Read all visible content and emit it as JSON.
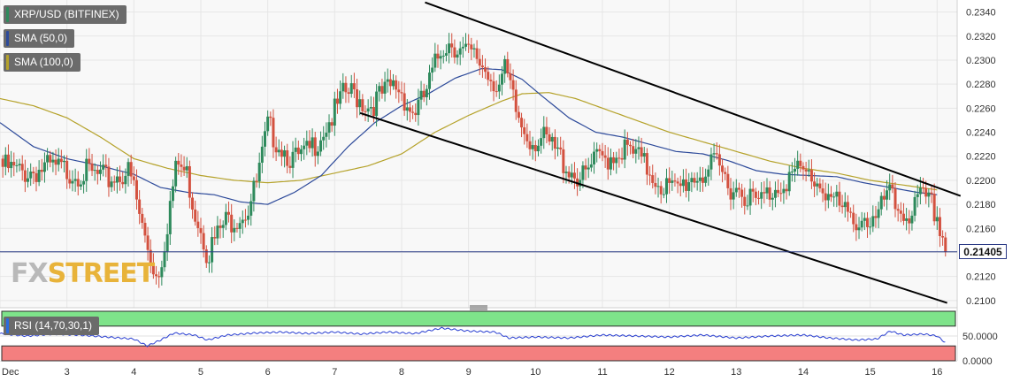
{
  "legend": {
    "pair": "XRP/USD (BITFINEX)",
    "sma50": "SMA (50,0)",
    "sma100": "SMA (100,0)",
    "rsi": "RSI (14,70,30,1)",
    "last_price": "0.21405",
    "watermark_a": "FX",
    "watermark_b": "STREET"
  },
  "colors": {
    "up": "#2e8a5c",
    "down": "#d3513f",
    "sma50": "#2d4a9a",
    "sma100": "#b5a22a",
    "rsi_line": "#2a3fd1",
    "overbought": "#7ee38a",
    "oversold": "#f47f7f",
    "price_line": "#2b3a86"
  },
  "chart_data": [
    {
      "type": "candlestick",
      "title": "XRP/USD (BITFINEX)",
      "ylim": [
        0.2094,
        0.235
      ],
      "y_ticks": [
        "0.2340",
        "0.2320",
        "0.2300",
        "0.2280",
        "0.2260",
        "0.2240",
        "0.2220",
        "0.2200",
        "0.2180",
        "0.2160",
        "0.2140",
        "0.2120",
        "0.2100"
      ],
      "x_ticks": [
        "Dec",
        "3",
        "4",
        "5",
        "6",
        "7",
        "8",
        "9",
        "10",
        "11",
        "12",
        "13",
        "14",
        "15",
        "16"
      ],
      "x_tick_days": [
        2,
        3,
        4,
        5,
        6,
        7,
        8,
        9,
        10,
        11,
        12,
        13,
        14,
        15,
        16
      ],
      "xlim_days": [
        2.0,
        16.3
      ],
      "close_anchors": [
        [
          2.0,
          0.2218
        ],
        [
          2.3,
          0.2212
        ],
        [
          2.7,
          0.2216
        ],
        [
          3.0,
          0.2214
        ],
        [
          3.3,
          0.2212
        ],
        [
          3.6,
          0.2206
        ],
        [
          3.9,
          0.2214
        ],
        [
          4.0,
          0.22
        ],
        [
          4.1,
          0.2172
        ],
        [
          4.25,
          0.2142
        ],
        [
          4.35,
          0.2125
        ],
        [
          4.45,
          0.2152
        ],
        [
          4.55,
          0.219
        ],
        [
          4.65,
          0.222
        ],
        [
          4.8,
          0.221
        ],
        [
          4.9,
          0.2182
        ],
        [
          5.0,
          0.2168
        ],
        [
          5.1,
          0.2145
        ],
        [
          5.2,
          0.2155
        ],
        [
          5.35,
          0.217
        ],
        [
          5.5,
          0.2175
        ],
        [
          5.7,
          0.2182
        ],
        [
          5.82,
          0.22
        ],
        [
          5.92,
          0.2226
        ],
        [
          6.0,
          0.225
        ],
        [
          6.2,
          0.2235
        ],
        [
          6.4,
          0.2222
        ],
        [
          6.6,
          0.2228
        ],
        [
          6.8,
          0.2246
        ],
        [
          7.0,
          0.2262
        ],
        [
          7.15,
          0.2278
        ],
        [
          7.3,
          0.2278
        ],
        [
          7.5,
          0.2268
        ],
        [
          7.7,
          0.2276
        ],
        [
          7.9,
          0.2285
        ],
        [
          8.0,
          0.228
        ],
        [
          8.15,
          0.2262
        ],
        [
          8.3,
          0.227
        ],
        [
          8.45,
          0.2292
        ],
        [
          8.6,
          0.2318
        ],
        [
          8.75,
          0.2322
        ],
        [
          8.9,
          0.2312
        ],
        [
          9.0,
          0.231
        ],
        [
          9.15,
          0.2306
        ],
        [
          9.3,
          0.2295
        ],
        [
          9.45,
          0.2285
        ],
        [
          9.55,
          0.2296
        ],
        [
          9.62,
          0.2282
        ],
        [
          9.7,
          0.2264
        ],
        [
          9.8,
          0.225
        ],
        [
          9.95,
          0.224
        ],
        [
          10.1,
          0.224
        ],
        [
          10.3,
          0.223
        ],
        [
          10.5,
          0.2216
        ],
        [
          10.7,
          0.2206
        ],
        [
          10.9,
          0.2222
        ],
        [
          11.1,
          0.2226
        ],
        [
          11.3,
          0.2232
        ],
        [
          11.5,
          0.2226
        ],
        [
          11.7,
          0.2214
        ],
        [
          11.9,
          0.2202
        ],
        [
          12.1,
          0.2196
        ],
        [
          12.3,
          0.2208
        ],
        [
          12.5,
          0.2212
        ],
        [
          12.7,
          0.2218
        ],
        [
          12.9,
          0.2202
        ],
        [
          13.1,
          0.2198
        ],
        [
          13.3,
          0.2186
        ],
        [
          13.5,
          0.2196
        ],
        [
          13.7,
          0.2206
        ],
        [
          13.9,
          0.2212
        ],
        [
          14.1,
          0.221
        ],
        [
          14.3,
          0.22
        ],
        [
          14.5,
          0.2186
        ],
        [
          14.7,
          0.2172
        ],
        [
          14.9,
          0.2176
        ],
        [
          15.0,
          0.2172
        ],
        [
          15.1,
          0.217
        ],
        [
          15.25,
          0.2196
        ],
        [
          15.4,
          0.2182
        ],
        [
          15.6,
          0.2178
        ],
        [
          15.75,
          0.219
        ],
        [
          15.9,
          0.2186
        ],
        [
          16.0,
          0.2176
        ],
        [
          16.08,
          0.216
        ],
        [
          16.13,
          0.21405
        ]
      ],
      "sma50_anchors": [
        [
          2.0,
          0.2248
        ],
        [
          2.5,
          0.2228
        ],
        [
          3.0,
          0.2218
        ],
        [
          3.5,
          0.2212
        ],
        [
          4.0,
          0.2205
        ],
        [
          4.4,
          0.2194
        ],
        [
          4.8,
          0.219
        ],
        [
          5.2,
          0.2188
        ],
        [
          5.6,
          0.2182
        ],
        [
          6.0,
          0.218
        ],
        [
          6.4,
          0.219
        ],
        [
          6.8,
          0.2204
        ],
        [
          7.2,
          0.2228
        ],
        [
          7.6,
          0.2248
        ],
        [
          8.0,
          0.2262
        ],
        [
          8.4,
          0.2272
        ],
        [
          8.8,
          0.2285
        ],
        [
          9.2,
          0.2293
        ],
        [
          9.5,
          0.2292
        ],
        [
          9.8,
          0.2284
        ],
        [
          10.1,
          0.227
        ],
        [
          10.5,
          0.2252
        ],
        [
          10.9,
          0.224
        ],
        [
          11.3,
          0.2236
        ],
        [
          11.7,
          0.223
        ],
        [
          12.1,
          0.2224
        ],
        [
          12.5,
          0.2222
        ],
        [
          12.9,
          0.2216
        ],
        [
          13.3,
          0.2208
        ],
        [
          13.7,
          0.2205
        ],
        [
          14.1,
          0.2204
        ],
        [
          14.5,
          0.2203
        ],
        [
          14.9,
          0.2198
        ],
        [
          15.3,
          0.2194
        ],
        [
          15.7,
          0.219
        ],
        [
          16.0,
          0.2188
        ]
      ],
      "sma100_anchors": [
        [
          2.0,
          0.2268
        ],
        [
          2.5,
          0.2262
        ],
        [
          3.0,
          0.2252
        ],
        [
          3.5,
          0.2236
        ],
        [
          4.0,
          0.2218
        ],
        [
          4.5,
          0.221
        ],
        [
          5.0,
          0.2204
        ],
        [
          5.5,
          0.22
        ],
        [
          6.0,
          0.2198
        ],
        [
          6.5,
          0.22
        ],
        [
          7.0,
          0.2206
        ],
        [
          7.5,
          0.2212
        ],
        [
          8.0,
          0.2222
        ],
        [
          8.5,
          0.224
        ],
        [
          9.0,
          0.2254
        ],
        [
          9.5,
          0.2266
        ],
        [
          9.8,
          0.2272
        ],
        [
          10.2,
          0.2273
        ],
        [
          10.6,
          0.2268
        ],
        [
          11.0,
          0.226
        ],
        [
          11.5,
          0.225
        ],
        [
          12.0,
          0.224
        ],
        [
          12.5,
          0.2232
        ],
        [
          13.0,
          0.2224
        ],
        [
          13.5,
          0.2216
        ],
        [
          14.0,
          0.221
        ],
        [
          14.5,
          0.2206
        ],
        [
          15.0,
          0.22
        ],
        [
          15.5,
          0.2196
        ],
        [
          16.0,
          0.2192
        ]
      ],
      "channel_upper": [
        [
          8.35,
          0.2348
        ],
        [
          16.35,
          0.2187
        ]
      ],
      "channel_lower": [
        [
          7.38,
          0.2256
        ],
        [
          16.15,
          0.2098
        ]
      ],
      "last_price": 0.21405
    },
    {
      "type": "line",
      "title": "RSI (14,70,30,1)",
      "ylim": [
        0,
        100
      ],
      "y_ticks": [
        "50.0000",
        "0.0000"
      ],
      "bands": {
        "overbought": 70,
        "oversold": 30
      },
      "rsi_anchors": [
        [
          2.0,
          55
        ],
        [
          2.4,
          50
        ],
        [
          2.8,
          54
        ],
        [
          3.2,
          52
        ],
        [
          3.6,
          48
        ],
        [
          4.0,
          44
        ],
        [
          4.2,
          30
        ],
        [
          4.4,
          42
        ],
        [
          4.6,
          56
        ],
        [
          4.9,
          52
        ],
        [
          5.1,
          42
        ],
        [
          5.4,
          52
        ],
        [
          5.8,
          56
        ],
        [
          6.2,
          58
        ],
        [
          6.6,
          55
        ],
        [
          7.0,
          58
        ],
        [
          7.4,
          54
        ],
        [
          7.8,
          58
        ],
        [
          8.2,
          55
        ],
        [
          8.6,
          66
        ],
        [
          9.0,
          60
        ],
        [
          9.4,
          58
        ],
        [
          9.6,
          46
        ],
        [
          10.0,
          48
        ],
        [
          10.5,
          46
        ],
        [
          11.0,
          52
        ],
        [
          11.5,
          50
        ],
        [
          12.0,
          48
        ],
        [
          12.5,
          52
        ],
        [
          13.0,
          46
        ],
        [
          13.5,
          50
        ],
        [
          14.0,
          52
        ],
        [
          14.4,
          46
        ],
        [
          14.8,
          42
        ],
        [
          15.1,
          44
        ],
        [
          15.3,
          60
        ],
        [
          15.5,
          52
        ],
        [
          15.8,
          54
        ],
        [
          16.0,
          50
        ],
        [
          16.13,
          36
        ]
      ]
    }
  ]
}
